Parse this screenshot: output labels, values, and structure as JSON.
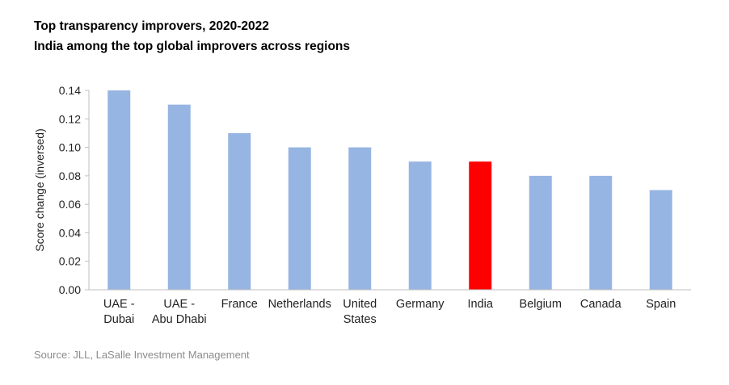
{
  "header": {
    "title": "Top transparency improvers, 2020-2022",
    "subtitle": "India among the top global improvers across regions"
  },
  "footer": {
    "source": "Source: JLL, LaSalle Investment Management"
  },
  "chart_data": {
    "type": "bar",
    "categories": [
      [
        "UAE -",
        "Dubai"
      ],
      [
        "UAE -",
        "Abu Dhabi"
      ],
      [
        "France"
      ],
      [
        "Netherlands"
      ],
      [
        "United",
        "States"
      ],
      [
        "Germany"
      ],
      [
        "India"
      ],
      [
        "Belgium"
      ],
      [
        "Canada"
      ],
      [
        "Spain"
      ]
    ],
    "values": [
      0.14,
      0.13,
      0.11,
      0.1,
      0.1,
      0.09,
      0.09,
      0.08,
      0.08,
      0.07
    ],
    "colors": [
      "#97b5e2",
      "#97b5e2",
      "#97b5e2",
      "#97b5e2",
      "#97b5e2",
      "#97b5e2",
      "#ff0000",
      "#97b5e2",
      "#97b5e2",
      "#97b5e2"
    ],
    "xlabel": "",
    "ylabel": "Score change (inversed)",
    "ylim": [
      0,
      0.14
    ],
    "yticks": [
      "0.00",
      "0.02",
      "0.04",
      "0.06",
      "0.08",
      "0.10",
      "0.12",
      "0.14"
    ],
    "grid": false,
    "legend": "none"
  }
}
